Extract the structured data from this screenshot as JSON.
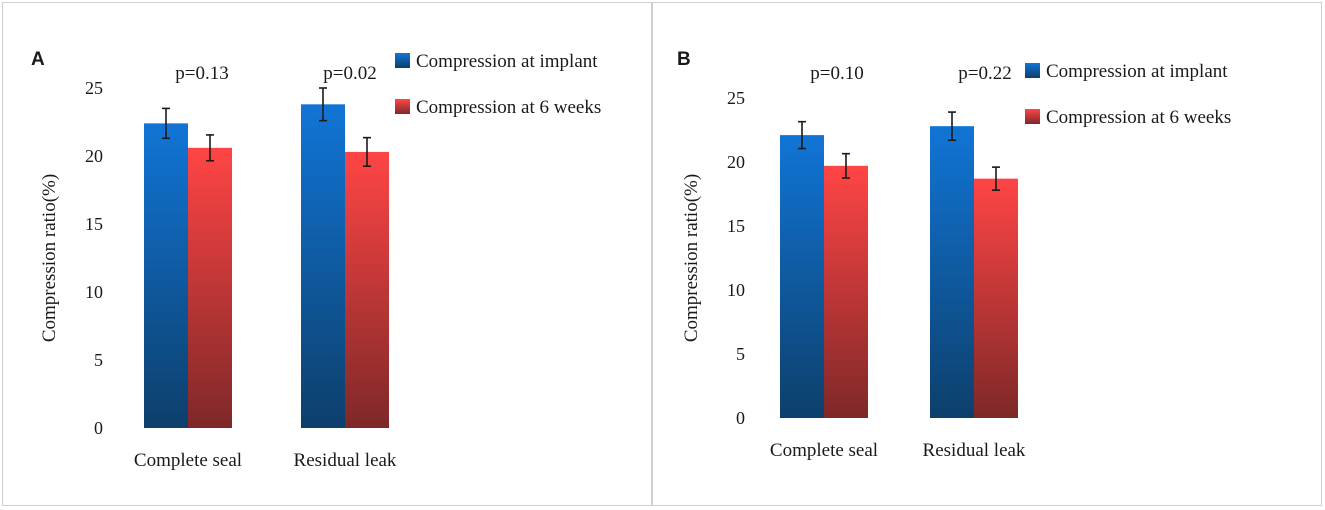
{
  "colors": {
    "implant_top": "#1175d6",
    "implant_bottom": "#0d3f6b",
    "six_weeks_top": "#ff4545",
    "six_weeks_bottom": "#7e2828",
    "axis_text": "#1a1a1a",
    "error_bar": "#1a1a1a"
  },
  "chart_data": [
    {
      "type": "bar",
      "panel_label": "A",
      "title": "",
      "ylabel": "Compression ratio(%)",
      "xlabel": "",
      "ylim": [
        0,
        25
      ],
      "yticks": [
        "0",
        "5",
        "10",
        "15",
        "20",
        "25"
      ],
      "categories": [
        "Complete seal",
        "Residual leak"
      ],
      "series": [
        {
          "name": "Compression at implant",
          "values": [
            22.4,
            23.8
          ],
          "errors": [
            1.1,
            1.2
          ]
        },
        {
          "name": "Compression at 6 weeks",
          "values": [
            20.6,
            20.3
          ],
          "errors": [
            0.95,
            1.05
          ]
        }
      ],
      "annotations": [
        "p=0.13",
        "p=0.02"
      ],
      "grid": false,
      "legend": "top-right"
    },
    {
      "type": "bar",
      "panel_label": "B",
      "title": "",
      "ylabel": "Compression ratio(%)",
      "xlabel": "",
      "ylim": [
        0,
        25
      ],
      "yticks": [
        "0",
        "5",
        "10",
        "15",
        "20",
        "25"
      ],
      "categories": [
        "Complete seal",
        "Residual leak"
      ],
      "series": [
        {
          "name": "Compression at implant",
          "values": [
            22.1,
            22.8
          ],
          "errors": [
            1.05,
            1.1
          ]
        },
        {
          "name": "Compression at 6 weeks",
          "values": [
            19.7,
            18.7
          ],
          "errors": [
            0.95,
            0.9
          ]
        }
      ],
      "annotations": [
        "p=0.10",
        "p=0.22"
      ],
      "grid": false,
      "legend": "top-right"
    }
  ]
}
